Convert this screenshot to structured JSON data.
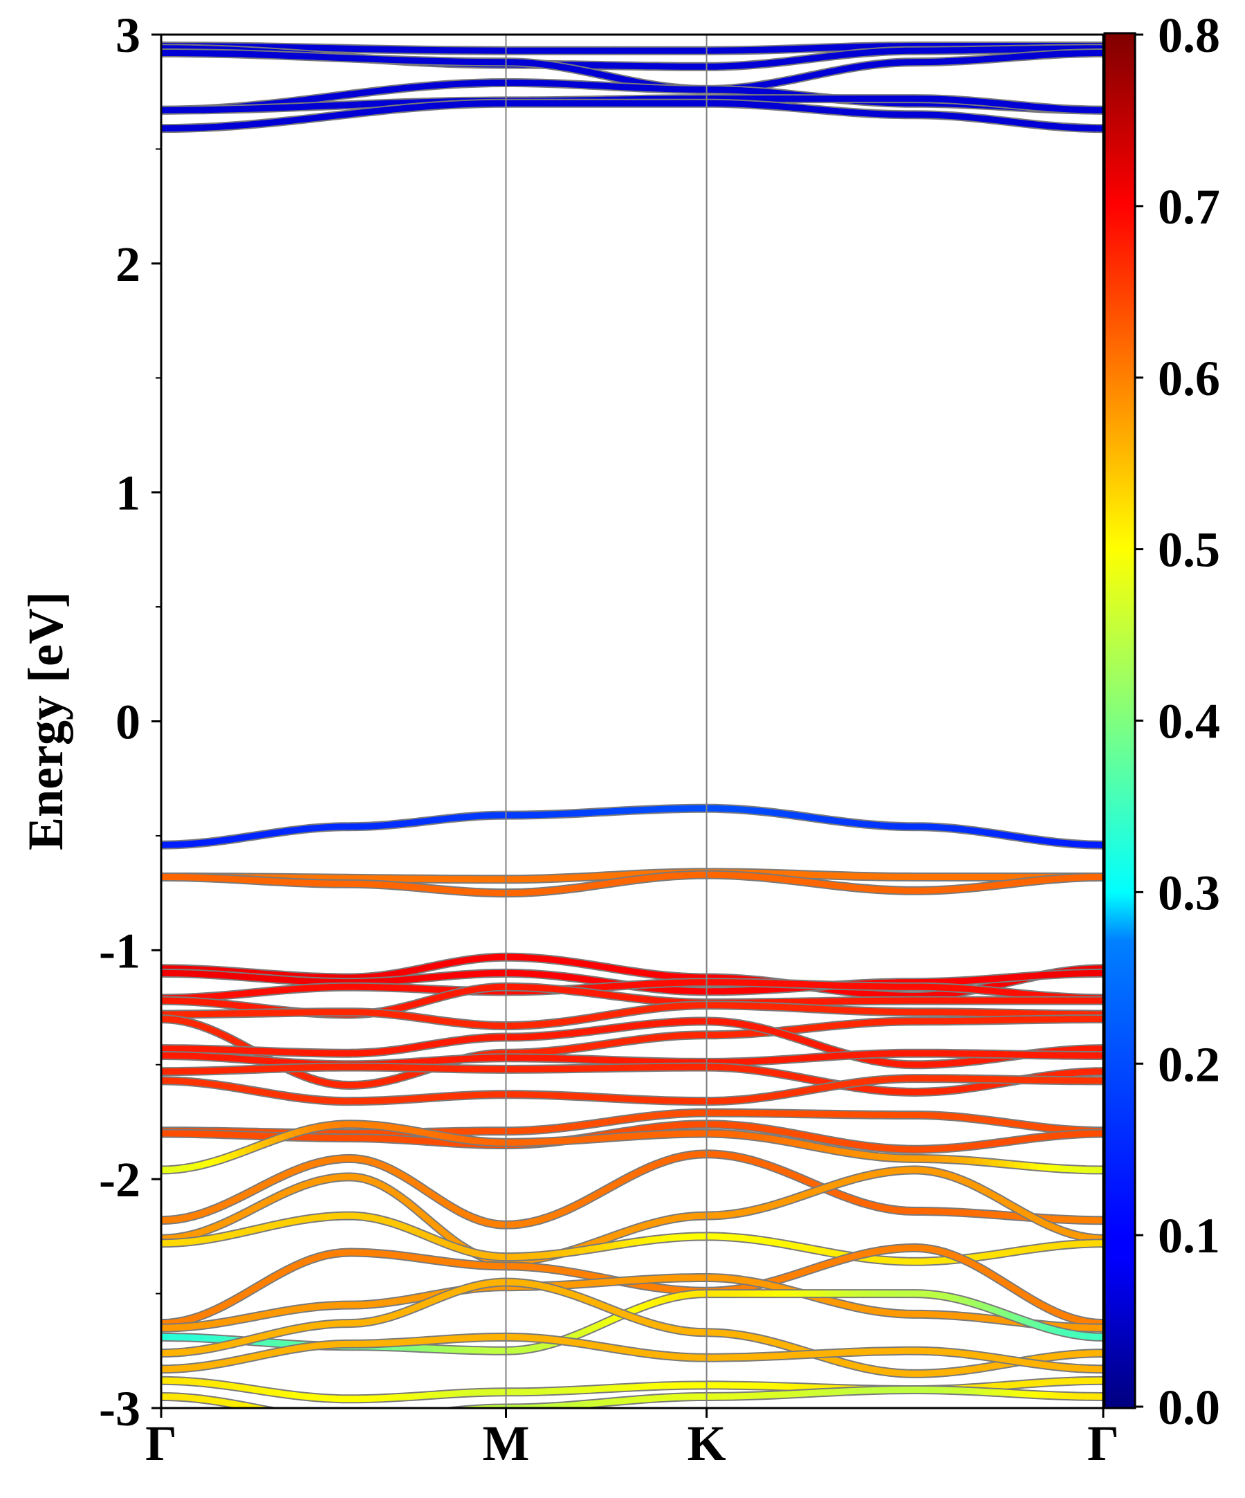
{
  "chart_data": {
    "type": "line",
    "title": "",
    "xlabel": "",
    "ylabel": "Energy [eV]",
    "ylim": [
      -3,
      3
    ],
    "yticks": [
      "3",
      "2",
      "1",
      "0",
      "-1",
      "-2",
      "-3"
    ],
    "high_symmetry_points": [
      {
        "label": "Γ",
        "k": 0.0
      },
      {
        "label": "M",
        "k": 0.366
      },
      {
        "label": "K",
        "k": 0.579
      },
      {
        "label": "Γ",
        "k": 1.0
      }
    ],
    "colorbar": {
      "ticks": [
        "0.0",
        "0.1",
        "0.2",
        "0.3",
        "0.4",
        "0.5",
        "0.6",
        "0.7",
        "0.8"
      ],
      "range": [
        0,
        0.8
      ],
      "colormap": "jet"
    },
    "grid": false,
    "series": [
      {
        "k": [
          0,
          0.366,
          0.579,
          0.8,
          1
        ],
        "e": [
          2.95,
          2.93,
          2.93,
          2.95,
          2.95
        ],
        "w": [
          0.06,
          0.06,
          0.06,
          0.06,
          0.06
        ]
      },
      {
        "k": [
          0,
          0.366,
          0.579,
          0.8,
          1
        ],
        "e": [
          2.94,
          2.87,
          2.86,
          2.93,
          2.94
        ],
        "w": [
          0.06,
          0.06,
          0.06,
          0.06,
          0.06
        ]
      },
      {
        "k": [
          0,
          0.366,
          0.579,
          0.8,
          1
        ],
        "e": [
          2.92,
          2.88,
          2.76,
          2.88,
          2.92
        ],
        "w": [
          0.06,
          0.06,
          0.06,
          0.06,
          0.06
        ]
      },
      {
        "k": [
          0,
          0.366,
          0.579,
          0.8,
          1
        ],
        "e": [
          2.67,
          2.79,
          2.76,
          2.7,
          2.67
        ],
        "w": [
          0.06,
          0.06,
          0.06,
          0.06,
          0.06
        ]
      },
      {
        "k": [
          0,
          0.366,
          0.579,
          0.8,
          1
        ],
        "e": [
          2.67,
          2.71,
          2.72,
          2.72,
          2.67
        ],
        "w": [
          0.06,
          0.06,
          0.06,
          0.06,
          0.06
        ]
      },
      {
        "k": [
          0,
          0.366,
          0.579,
          0.8,
          1
        ],
        "e": [
          2.59,
          2.7,
          2.7,
          2.65,
          2.59
        ],
        "w": [
          0.06,
          0.06,
          0.06,
          0.06,
          0.06
        ]
      },
      {
        "k": [
          0,
          0.2,
          0.366,
          0.579,
          0.8,
          1
        ],
        "e": [
          -0.54,
          -0.46,
          -0.41,
          -0.38,
          -0.46,
          -0.54
        ],
        "w": [
          0.13,
          0.15,
          0.17,
          0.2,
          0.16,
          0.13
        ]
      },
      {
        "k": [
          0,
          0.366,
          0.579,
          0.8,
          1
        ],
        "e": [
          -0.68,
          -0.69,
          -0.66,
          -0.68,
          -0.68
        ],
        "w": [
          0.61,
          0.61,
          0.61,
          0.61,
          0.61
        ]
      },
      {
        "k": [
          0,
          0.2,
          0.366,
          0.579,
          0.8,
          1
        ],
        "e": [
          -0.68,
          -0.71,
          -0.75,
          -0.67,
          -0.74,
          -0.68
        ],
        "w": [
          0.62,
          0.62,
          0.62,
          0.62,
          0.62,
          0.62
        ]
      },
      {
        "k": [
          0,
          0.2,
          0.366,
          0.579,
          0.8,
          1
        ],
        "e": [
          -1.08,
          -1.12,
          -1.03,
          -1.12,
          -1.2,
          -1.08
        ],
        "w": [
          0.71,
          0.71,
          0.7,
          0.7,
          0.7,
          0.71
        ]
      },
      {
        "k": [
          0,
          0.2,
          0.366,
          0.579,
          0.8,
          1
        ],
        "e": [
          -1.1,
          -1.14,
          -1.1,
          -1.18,
          -1.14,
          -1.1
        ],
        "w": [
          0.71,
          0.71,
          0.7,
          0.7,
          0.7,
          0.71
        ]
      },
      {
        "k": [
          0,
          0.2,
          0.366,
          0.579,
          0.8,
          1
        ],
        "e": [
          -1.21,
          -1.16,
          -1.18,
          -1.14,
          -1.16,
          -1.21
        ],
        "w": [
          0.69,
          0.69,
          0.69,
          0.69,
          0.69,
          0.69
        ]
      },
      {
        "k": [
          0,
          0.2,
          0.366,
          0.579,
          0.8,
          1
        ],
        "e": [
          -1.22,
          -1.28,
          -1.16,
          -1.23,
          -1.22,
          -1.22
        ],
        "w": [
          0.68,
          0.68,
          0.68,
          0.68,
          0.68,
          0.68
        ]
      },
      {
        "k": [
          0,
          0.2,
          0.366,
          0.579,
          0.8,
          1
        ],
        "e": [
          -1.28,
          -1.27,
          -1.33,
          -1.24,
          -1.27,
          -1.28
        ],
        "w": [
          0.67,
          0.67,
          0.67,
          0.67,
          0.67,
          0.67
        ]
      },
      {
        "k": [
          0,
          0.2,
          0.366,
          0.579,
          0.8,
          1
        ],
        "e": [
          -1.3,
          -1.59,
          -1.45,
          -1.37,
          -1.31,
          -1.3
        ],
        "w": [
          0.67,
          0.67,
          0.67,
          0.67,
          0.67,
          0.67
        ]
      },
      {
        "k": [
          0,
          0.2,
          0.366,
          0.579,
          0.8,
          1
        ],
        "e": [
          -1.43,
          -1.45,
          -1.38,
          -1.31,
          -1.5,
          -1.43
        ],
        "w": [
          0.68,
          0.68,
          0.68,
          0.68,
          0.68,
          0.68
        ]
      },
      {
        "k": [
          0,
          0.2,
          0.366,
          0.579,
          0.8,
          1
        ],
        "e": [
          -1.46,
          -1.5,
          -1.47,
          -1.49,
          -1.45,
          -1.46
        ],
        "w": [
          0.68,
          0.68,
          0.68,
          0.68,
          0.68,
          0.68
        ]
      },
      {
        "k": [
          0,
          0.2,
          0.366,
          0.579,
          0.8,
          1
        ],
        "e": [
          -1.53,
          -1.51,
          -1.52,
          -1.51,
          -1.62,
          -1.53
        ],
        "w": [
          0.67,
          0.67,
          0.67,
          0.67,
          0.67,
          0.67
        ]
      },
      {
        "k": [
          0,
          0.2,
          0.366,
          0.579,
          0.8,
          1
        ],
        "e": [
          -1.57,
          -1.66,
          -1.63,
          -1.66,
          -1.56,
          -1.57
        ],
        "w": [
          0.66,
          0.66,
          0.66,
          0.66,
          0.66,
          0.66
        ]
      },
      {
        "k": [
          0,
          0.2,
          0.366,
          0.579,
          0.8,
          1
        ],
        "e": [
          -1.79,
          -1.8,
          -1.79,
          -1.71,
          -1.72,
          -1.79
        ],
        "w": [
          0.64,
          0.64,
          0.64,
          0.64,
          0.64,
          0.64
        ]
      },
      {
        "k": [
          0,
          0.2,
          0.366,
          0.579,
          0.8,
          1
        ],
        "e": [
          -1.8,
          -1.82,
          -1.85,
          -1.76,
          -1.87,
          -1.8
        ],
        "w": [
          0.64,
          0.64,
          0.64,
          0.64,
          0.64,
          0.64
        ]
      },
      {
        "k": [
          0,
          0.2,
          0.366,
          0.579,
          0.8,
          1
        ],
        "e": [
          -1.96,
          -1.76,
          -1.84,
          -1.8,
          -1.91,
          -1.96
        ],
        "w": [
          0.48,
          0.6,
          0.62,
          0.62,
          0.58,
          0.48
        ]
      },
      {
        "k": [
          0,
          0.2,
          0.366,
          0.579,
          0.8,
          1
        ],
        "e": [
          -2.18,
          -1.91,
          -2.2,
          -1.89,
          -2.14,
          -2.18
        ],
        "w": [
          0.6,
          0.6,
          0.6,
          0.62,
          0.62,
          0.6
        ]
      },
      {
        "k": [
          0,
          0.2,
          0.366,
          0.579,
          0.8,
          1
        ],
        "e": [
          -2.26,
          -1.99,
          -2.36,
          -2.16,
          -1.96,
          -2.26
        ],
        "w": [
          0.58,
          0.58,
          0.58,
          0.58,
          0.58,
          0.58
        ]
      },
      {
        "k": [
          0,
          0.2,
          0.366,
          0.579,
          0.8,
          1
        ],
        "e": [
          -2.28,
          -2.16,
          -2.34,
          -2.25,
          -2.36,
          -2.28
        ],
        "w": [
          0.53,
          0.54,
          0.56,
          0.5,
          0.52,
          0.53
        ]
      },
      {
        "k": [
          0,
          0.2,
          0.366,
          0.579,
          0.8,
          1
        ],
        "e": [
          -2.63,
          -2.32,
          -2.38,
          -2.49,
          -2.3,
          -2.63
        ],
        "w": [
          0.6,
          0.6,
          0.6,
          0.6,
          0.6,
          0.6
        ]
      },
      {
        "k": [
          0,
          0.2,
          0.366,
          0.579,
          0.8,
          1
        ],
        "e": [
          -2.65,
          -2.55,
          -2.47,
          -2.43,
          -2.59,
          -2.65
        ],
        "w": [
          0.58,
          0.58,
          0.58,
          0.58,
          0.58,
          0.58
        ]
      },
      {
        "k": [
          0,
          0.2,
          0.366,
          0.579,
          0.8,
          1
        ],
        "e": [
          -2.69,
          -2.73,
          -2.75,
          -2.5,
          -2.5,
          -2.69
        ],
        "w": [
          0.33,
          0.38,
          0.45,
          0.52,
          0.45,
          0.35
        ]
      },
      {
        "k": [
          0,
          0.2,
          0.366,
          0.579,
          0.8,
          1
        ],
        "e": [
          -2.76,
          -2.63,
          -2.45,
          -2.67,
          -2.85,
          -2.76
        ],
        "w": [
          0.56,
          0.56,
          0.56,
          0.56,
          0.56,
          0.56
        ]
      },
      {
        "k": [
          0,
          0.2,
          0.366,
          0.579,
          0.8,
          1
        ],
        "e": [
          -2.83,
          -2.72,
          -2.69,
          -2.78,
          -2.75,
          -2.83
        ],
        "w": [
          0.56,
          0.56,
          0.56,
          0.56,
          0.56,
          0.56
        ]
      },
      {
        "k": [
          0,
          0.2,
          0.366,
          0.579,
          0.8,
          1
        ],
        "e": [
          -2.88,
          -2.96,
          -2.93,
          -2.9,
          -2.92,
          -2.88
        ],
        "w": [
          0.52,
          0.5,
          0.47,
          0.5,
          0.52,
          0.52
        ]
      },
      {
        "k": [
          0,
          0.2,
          0.366,
          0.579,
          0.8,
          1
        ],
        "e": [
          -2.95,
          -3.05,
          -3.0,
          -2.95,
          -2.92,
          -2.95
        ],
        "w": [
          0.52,
          0.5,
          0.45,
          0.48,
          0.45,
          0.52
        ]
      }
    ]
  }
}
